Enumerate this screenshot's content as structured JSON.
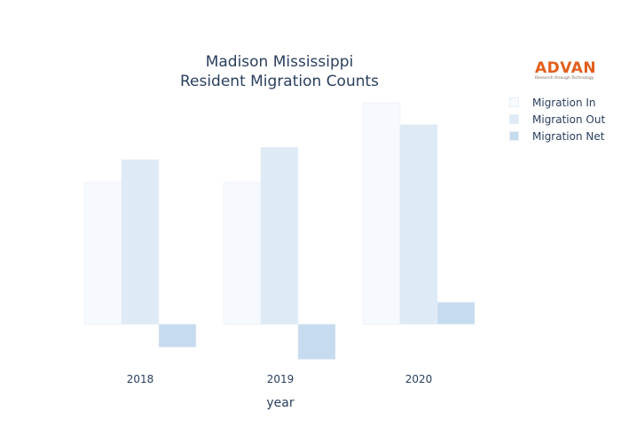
{
  "chart_data": {
    "type": "bar",
    "title_line1": "Madison Mississippi",
    "title_line2": "Resident Migration Counts",
    "xlabel": "year",
    "ylabel": "",
    "categories": [
      "2018",
      "2019",
      "2020"
    ],
    "series": [
      {
        "name": "Migration In",
        "values": [
          1620,
          1620,
          2530
        ],
        "color": "#f6fafe"
      },
      {
        "name": "Migration Out",
        "values": [
          1880,
          2020,
          2280
        ],
        "color": "#deebf7"
      },
      {
        "name": "Migration Net",
        "values": [
          -260,
          -400,
          250
        ],
        "color": "#c6dbef"
      }
    ],
    "ylim": [
      -400,
      2530
    ],
    "grid": false,
    "y_axis_visible": false,
    "legend_position": "top-right"
  },
  "brand": {
    "name": "ADVAN",
    "tagline": "Research through Technology",
    "color": "#e25f1c"
  }
}
